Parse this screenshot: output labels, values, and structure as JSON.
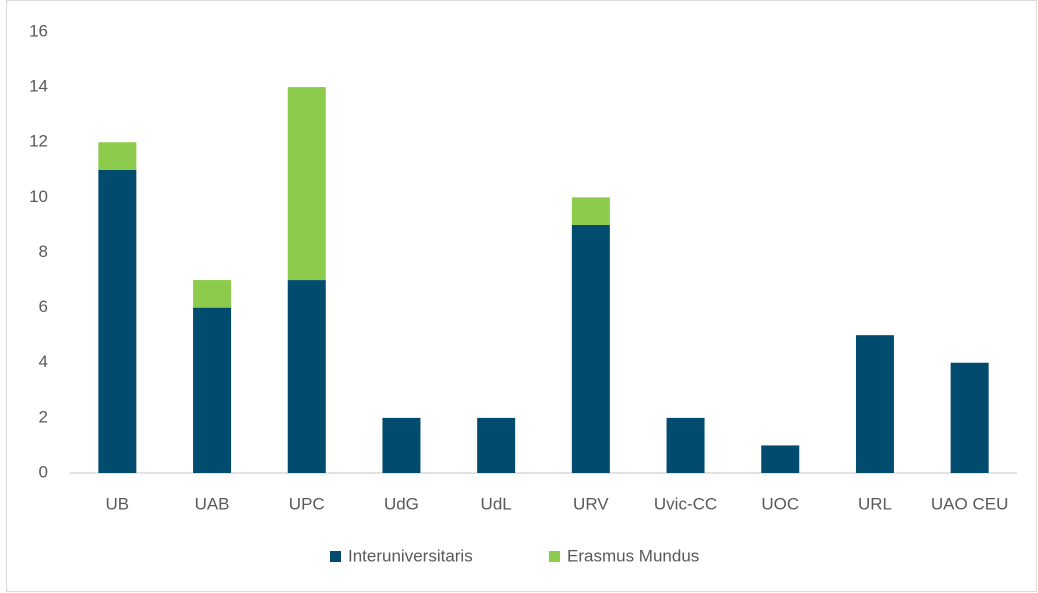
{
  "chart_data": {
    "type": "stacked_bar",
    "categories": [
      "UB",
      "UAB",
      "UPC",
      "UdG",
      "UdL",
      "URV",
      "Uvic-CC",
      "UOC",
      "URL",
      "UAO CEU"
    ],
    "series": [
      {
        "name": "Interuniversitaris",
        "color": "#004b6e",
        "values": [
          11,
          6,
          7,
          2,
          2,
          9,
          2,
          1,
          5,
          4
        ]
      },
      {
        "name": "Erasmus Mundus",
        "color": "#8ccb4b",
        "values": [
          1,
          1,
          7,
          0,
          0,
          1,
          0,
          0,
          0,
          0
        ]
      }
    ],
    "ylim": [
      0,
      16
    ],
    "yticks": [
      0,
      2,
      4,
      6,
      8,
      10,
      12,
      14,
      16
    ],
    "grid": false,
    "legend": "bottom"
  }
}
